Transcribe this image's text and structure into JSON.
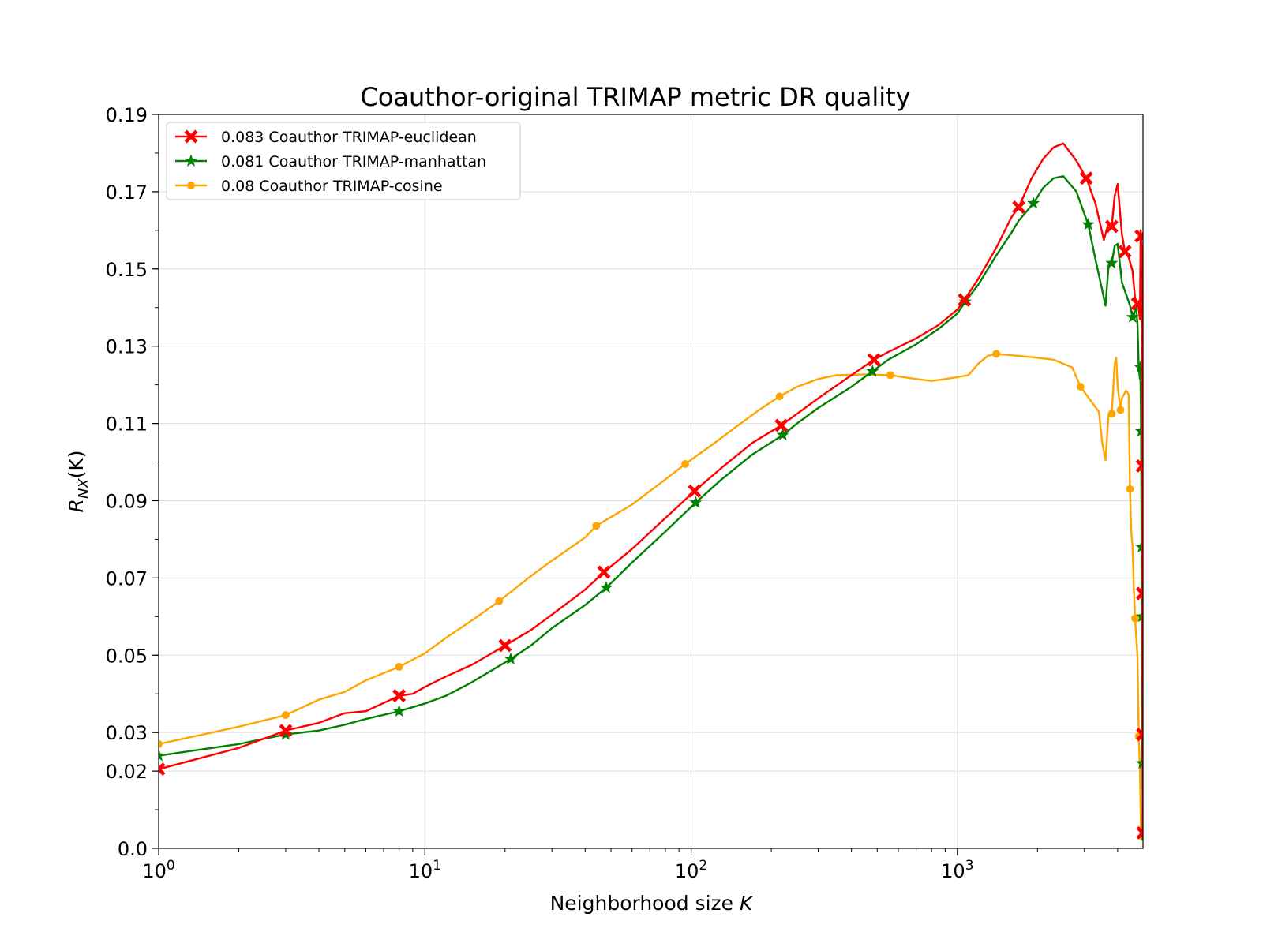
{
  "chart_data": {
    "type": "line",
    "title": "Coauthor-original TRIMAP metric DR quality",
    "xlabel": "Neighborhood size K",
    "ylabel": "R_NX(K)",
    "xscale": "log",
    "xlim": [
      1,
      4980
    ],
    "ylim": [
      0.0,
      0.19
    ],
    "yticks": [
      "0.0",
      "0.02",
      "0.03",
      "0.05",
      "0.07",
      "0.09",
      "0.11",
      "0.13",
      "0.15",
      "0.17",
      "0.19"
    ],
    "ytick_values": [
      0.0,
      0.02,
      0.03,
      0.05,
      0.07,
      0.09,
      0.11,
      0.13,
      0.15,
      0.17,
      0.19
    ],
    "xticks": [
      {
        "value": 1,
        "base": "10",
        "exp": "0"
      },
      {
        "value": 10,
        "base": "10",
        "exp": "1"
      },
      {
        "value": 100,
        "base": "10",
        "exp": "2"
      },
      {
        "value": 1000,
        "base": "10",
        "exp": "3"
      }
    ],
    "grid": true,
    "legend_position": "top-left",
    "series": [
      {
        "name": "0.083 Coauthor TRIMAP-euclidean",
        "color": "#ff0000",
        "marker": "X",
        "points": [
          [
            1,
            0.0205
          ],
          [
            2,
            0.026
          ],
          [
            3,
            0.0305
          ],
          [
            4,
            0.0325
          ],
          [
            5,
            0.035
          ],
          [
            6,
            0.0355
          ],
          [
            8,
            0.0395
          ],
          [
            9,
            0.04
          ],
          [
            10,
            0.0418
          ],
          [
            12,
            0.0445
          ],
          [
            15,
            0.0475
          ],
          [
            20,
            0.0525
          ],
          [
            25,
            0.0565
          ],
          [
            30,
            0.0605
          ],
          [
            40,
            0.067
          ],
          [
            47,
            0.0715
          ],
          [
            60,
            0.0775
          ],
          [
            80,
            0.0855
          ],
          [
            103,
            0.0925
          ],
          [
            130,
            0.0985
          ],
          [
            170,
            0.105
          ],
          [
            218,
            0.1095
          ],
          [
            250,
            0.1125
          ],
          [
            300,
            0.1165
          ],
          [
            400,
            0.1225
          ],
          [
            486,
            0.1265
          ],
          [
            550,
            0.1285
          ],
          [
            700,
            0.132
          ],
          [
            850,
            0.1355
          ],
          [
            1000,
            0.1395
          ],
          [
            1063,
            0.142
          ],
          [
            1200,
            0.1475
          ],
          [
            1400,
            0.1555
          ],
          [
            1600,
            0.1635
          ],
          [
            1700,
            0.166
          ],
          [
            1900,
            0.1735
          ],
          [
            2100,
            0.1785
          ],
          [
            2300,
            0.1815
          ],
          [
            2500,
            0.1825
          ],
          [
            2800,
            0.178
          ],
          [
            3050,
            0.1735
          ],
          [
            3300,
            0.167
          ],
          [
            3550,
            0.1575
          ],
          [
            3700,
            0.162
          ],
          [
            3800,
            0.161
          ],
          [
            3900,
            0.169
          ],
          [
            4000,
            0.172
          ],
          [
            4150,
            0.159
          ],
          [
            4260,
            0.1545
          ],
          [
            4400,
            0.153
          ],
          [
            4550,
            0.1495
          ],
          [
            4650,
            0.1425
          ],
          [
            4750,
            0.141
          ],
          [
            4800,
            0.1395
          ],
          [
            4850,
            0.137
          ],
          [
            4880,
            0.16
          ],
          [
            4900,
            0.1585
          ],
          [
            4920,
            0.156
          ],
          [
            4940,
            0.1555
          ],
          [
            4950,
            0.099
          ],
          [
            4960,
            0.066
          ],
          [
            4970,
            0.0295
          ],
          [
            4975,
            0.004
          ]
        ],
        "markers": [
          [
            1,
            0.0205
          ],
          [
            3,
            0.0305
          ],
          [
            8,
            0.0395
          ],
          [
            20,
            0.0525
          ],
          [
            47,
            0.0715
          ],
          [
            103,
            0.0925
          ],
          [
            218,
            0.1095
          ],
          [
            486,
            0.1265
          ],
          [
            1063,
            0.142
          ],
          [
            1700,
            0.166
          ],
          [
            3050,
            0.1735
          ],
          [
            3800,
            0.161
          ],
          [
            4260,
            0.1545
          ],
          [
            4750,
            0.141
          ],
          [
            4900,
            0.1585
          ],
          [
            4950,
            0.099
          ],
          [
            4960,
            0.066
          ],
          [
            4970,
            0.0295
          ],
          [
            4975,
            0.004
          ]
        ]
      },
      {
        "name": "0.081 Coauthor TRIMAP-manhattan",
        "color": "#008000",
        "marker": "star",
        "points": [
          [
            1,
            0.024
          ],
          [
            2,
            0.027
          ],
          [
            3,
            0.0295
          ],
          [
            4,
            0.0305
          ],
          [
            5,
            0.032
          ],
          [
            6,
            0.0335
          ],
          [
            8,
            0.0355
          ],
          [
            10,
            0.0375
          ],
          [
            12,
            0.0395
          ],
          [
            15,
            0.043
          ],
          [
            21,
            0.049
          ],
          [
            25,
            0.0525
          ],
          [
            30,
            0.057
          ],
          [
            40,
            0.063
          ],
          [
            48,
            0.0675
          ],
          [
            60,
            0.074
          ],
          [
            80,
            0.082
          ],
          [
            104,
            0.0895
          ],
          [
            130,
            0.0955
          ],
          [
            170,
            0.102
          ],
          [
            221,
            0.107
          ],
          [
            250,
            0.11
          ],
          [
            300,
            0.114
          ],
          [
            400,
            0.1195
          ],
          [
            480,
            0.1235
          ],
          [
            550,
            0.1265
          ],
          [
            700,
            0.1305
          ],
          [
            850,
            0.1345
          ],
          [
            1000,
            0.1385
          ],
          [
            1070,
            0.1415
          ],
          [
            1200,
            0.146
          ],
          [
            1400,
            0.1535
          ],
          [
            1600,
            0.1595
          ],
          [
            1700,
            0.1625
          ],
          [
            1930,
            0.167
          ],
          [
            2100,
            0.171
          ],
          [
            2300,
            0.1735
          ],
          [
            2500,
            0.174
          ],
          [
            2800,
            0.17
          ],
          [
            3100,
            0.1615
          ],
          [
            3300,
            0.1525
          ],
          [
            3500,
            0.1445
          ],
          [
            3600,
            0.1405
          ],
          [
            3700,
            0.151
          ],
          [
            3800,
            0.1515
          ],
          [
            3900,
            0.156
          ],
          [
            4000,
            0.1565
          ],
          [
            4150,
            0.1465
          ],
          [
            4300,
            0.1435
          ],
          [
            4450,
            0.1405
          ],
          [
            4550,
            0.1375
          ],
          [
            4600,
            0.1375
          ],
          [
            4650,
            0.1405
          ],
          [
            4700,
            0.1395
          ],
          [
            4750,
            0.1355
          ],
          [
            4800,
            0.1245
          ],
          [
            4850,
            0.1215
          ],
          [
            4870,
            0.1245
          ],
          [
            4900,
            0.108
          ],
          [
            4920,
            0.078
          ],
          [
            4940,
            0.06
          ],
          [
            4950,
            0.022
          ],
          [
            4960,
            0.0215
          ],
          [
            4970,
            0.002
          ]
        ],
        "markers": [
          [
            1,
            0.024
          ],
          [
            3,
            0.0295
          ],
          [
            8,
            0.0355
          ],
          [
            21,
            0.049
          ],
          [
            48,
            0.0675
          ],
          [
            104,
            0.0895
          ],
          [
            221,
            0.107
          ],
          [
            480,
            0.1235
          ],
          [
            1070,
            0.1415
          ],
          [
            1930,
            0.167
          ],
          [
            3100,
            0.1615
          ],
          [
            3800,
            0.1515
          ],
          [
            4550,
            0.1375
          ],
          [
            4870,
            0.1245
          ],
          [
            4900,
            0.108
          ],
          [
            4920,
            0.078
          ],
          [
            4940,
            0.06
          ],
          [
            4950,
            0.022
          ]
        ]
      },
      {
        "name": "0.08 Coauthor TRIMAP-cosine",
        "color": "#ffa500",
        "marker": "dot",
        "points": [
          [
            1,
            0.027
          ],
          [
            2,
            0.0315
          ],
          [
            3,
            0.0345
          ],
          [
            4,
            0.0385
          ],
          [
            5,
            0.0405
          ],
          [
            6,
            0.0435
          ],
          [
            8,
            0.047
          ],
          [
            10,
            0.0505
          ],
          [
            12,
            0.0545
          ],
          [
            15,
            0.059
          ],
          [
            19,
            0.064
          ],
          [
            25,
            0.0705
          ],
          [
            30,
            0.0745
          ],
          [
            40,
            0.0805
          ],
          [
            44,
            0.0835
          ],
          [
            60,
            0.089
          ],
          [
            80,
            0.0955
          ],
          [
            95,
            0.0995
          ],
          [
            120,
            0.1045
          ],
          [
            150,
            0.1095
          ],
          [
            180,
            0.1135
          ],
          [
            215,
            0.117
          ],
          [
            250,
            0.1195
          ],
          [
            300,
            0.1215
          ],
          [
            350,
            0.1225
          ],
          [
            450,
            0.1227
          ],
          [
            560,
            0.1225
          ],
          [
            700,
            0.1215
          ],
          [
            800,
            0.121
          ],
          [
            900,
            0.1215
          ],
          [
            1000,
            0.122
          ],
          [
            1100,
            0.1225
          ],
          [
            1200,
            0.1255
          ],
          [
            1300,
            0.1275
          ],
          [
            1400,
            0.128
          ],
          [
            1700,
            0.1275
          ],
          [
            2000,
            0.127
          ],
          [
            2300,
            0.1265
          ],
          [
            2700,
            0.1245
          ],
          [
            2900,
            0.1195
          ],
          [
            3200,
            0.1155
          ],
          [
            3400,
            0.113
          ],
          [
            3500,
            0.105
          ],
          [
            3600,
            0.1005
          ],
          [
            3700,
            0.1125
          ],
          [
            3800,
            0.1125
          ],
          [
            3900,
            0.1255
          ],
          [
            3950,
            0.127
          ],
          [
            4000,
            0.1195
          ],
          [
            4100,
            0.1135
          ],
          [
            4150,
            0.1165
          ],
          [
            4300,
            0.1185
          ],
          [
            4400,
            0.1175
          ],
          [
            4450,
            0.093
          ],
          [
            4500,
            0.082
          ],
          [
            4550,
            0.078
          ],
          [
            4600,
            0.0675
          ],
          [
            4650,
            0.0595
          ],
          [
            4700,
            0.0545
          ],
          [
            4750,
            0.0495
          ],
          [
            4800,
            0.029
          ],
          [
            4850,
            0.0205
          ],
          [
            4900,
            0.002
          ]
        ],
        "markers": [
          [
            1,
            0.027
          ],
          [
            3,
            0.0345
          ],
          [
            8,
            0.047
          ],
          [
            19,
            0.064
          ],
          [
            44,
            0.0835
          ],
          [
            95,
            0.0995
          ],
          [
            215,
            0.117
          ],
          [
            560,
            0.1225
          ],
          [
            1400,
            0.128
          ],
          [
            2900,
            0.1195
          ],
          [
            3800,
            0.1125
          ],
          [
            4100,
            0.1135
          ],
          [
            4450,
            0.093
          ],
          [
            4650,
            0.0595
          ],
          [
            4800,
            0.029
          ]
        ]
      }
    ]
  }
}
